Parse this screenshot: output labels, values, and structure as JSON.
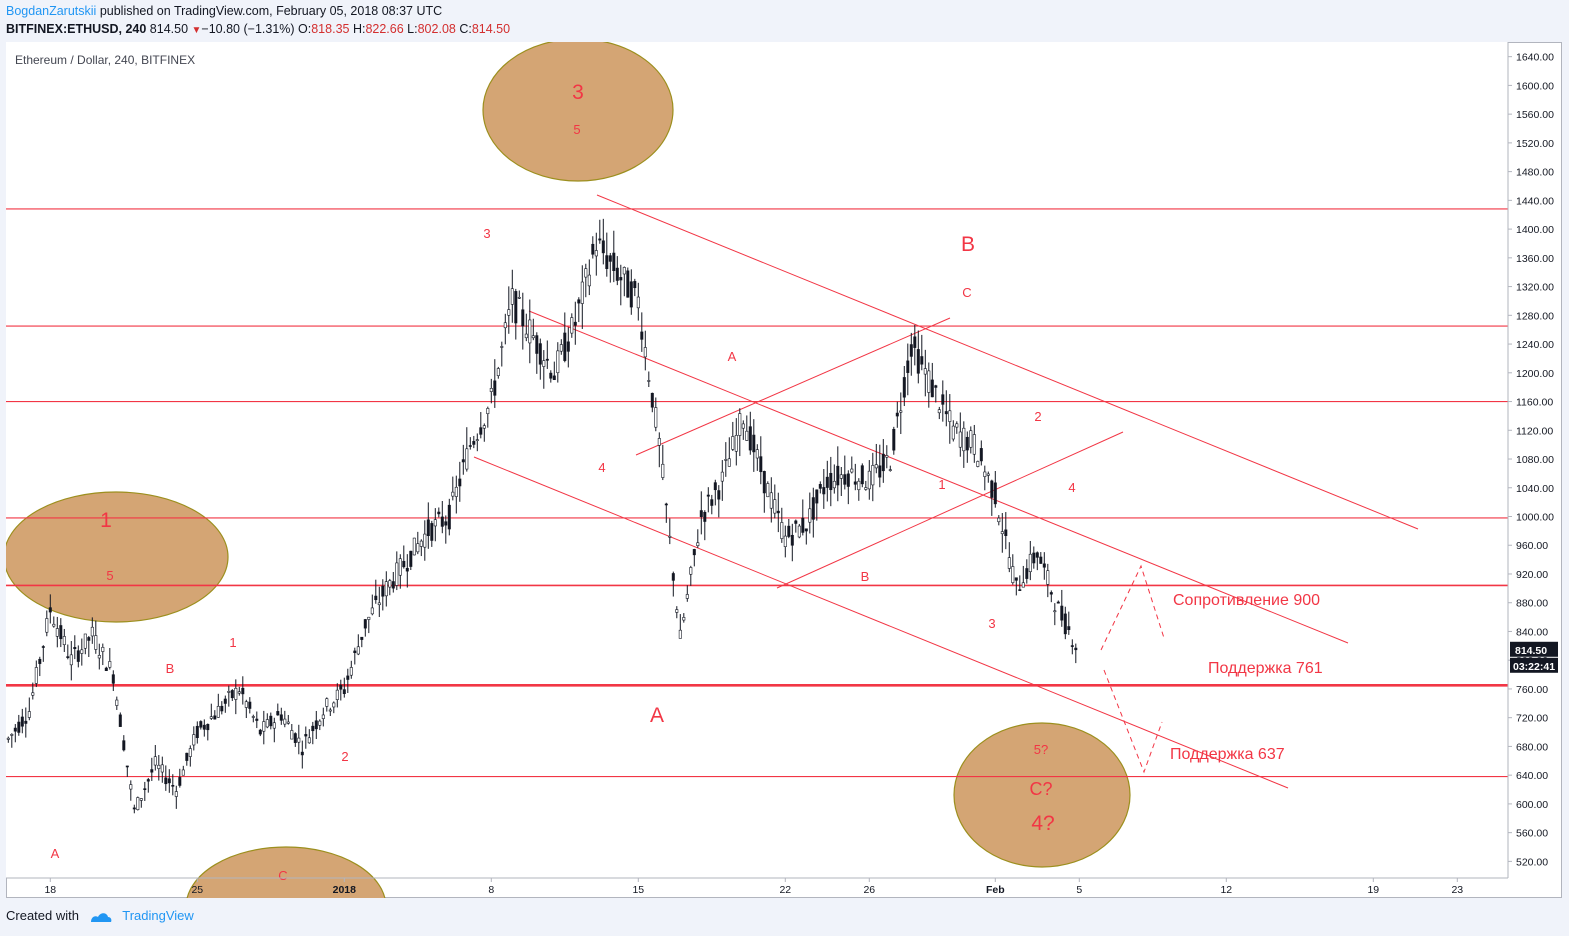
{
  "header": {
    "author": "BogdanZarutskii",
    "published": "published on TradingView.com, February 05, 2018 08:37 UTC",
    "symbol": "BITFINEX:ETHUSD, 240",
    "price": "814.50",
    "change": "−10.80 (−1.31%)",
    "o_label": "O:",
    "o_value": "818.35",
    "h_label": "H:",
    "h_value": "822.66",
    "l_label": "L:",
    "l_value": "802.08",
    "c_label": "C:",
    "c_value": "814.50",
    "down_glyph": "▼"
  },
  "footer": {
    "created_with": "Created with",
    "brand": "TradingView"
  },
  "colors": {
    "red": "#f23645",
    "ellipse_fill": "#d4a574",
    "ellipse_stroke": "#9c8f1e",
    "blue": "#2196f3"
  },
  "chart_data": {
    "type": "candlestick",
    "title": "Ethereum / Dollar, 240, BITFINEX",
    "ylim": [
      495,
      1660
    ],
    "y_ticks": [
      "1640.00",
      "1600.00",
      "1560.00",
      "1520.00",
      "1480.00",
      "1440.00",
      "1400.00",
      "1360.00",
      "1320.00",
      "1280.00",
      "1240.00",
      "1200.00",
      "1160.00",
      "1120.00",
      "1080.00",
      "1040.00",
      "1000.00",
      "960.00",
      "920.00",
      "880.00",
      "840.00",
      "800.00",
      "760.00",
      "720.00",
      "680.00",
      "640.00",
      "600.00",
      "560.00",
      "520.00"
    ],
    "x_ticks": [
      "18",
      "25",
      "2018",
      "8",
      "15",
      "22",
      "26",
      "Feb",
      "5",
      "12",
      "19",
      "23"
    ],
    "last_price_label": "814.50",
    "countdown_label": "03:22:41",
    "horizontal_levels": [
      1428,
      1265,
      1160,
      998,
      904,
      765,
      638
    ],
    "price_path": [
      [
        "16 Dec",
        690
      ],
      [
        "17 Dec",
        730
      ],
      [
        "18 Dec",
        870
      ],
      [
        "19 Dec",
        800
      ],
      [
        "20 Dec",
        835
      ],
      [
        "21 Dec",
        780
      ],
      [
        "22 Dec",
        590
      ],
      [
        "23 Dec",
        655
      ],
      [
        "24 Dec",
        620
      ],
      [
        "25 Dec",
        700
      ],
      [
        "26 Dec",
        730
      ],
      [
        "27 Dec",
        760
      ],
      [
        "28 Dec",
        700
      ],
      [
        "29 Dec",
        725
      ],
      [
        "30 Dec",
        680
      ],
      [
        "31 Dec",
        730
      ],
      [
        "1 Jan",
        760
      ],
      [
        "2 Jan",
        850
      ],
      [
        "3 Jan",
        900
      ],
      [
        "4 Jan",
        940
      ],
      [
        "5 Jan",
        980
      ],
      [
        "6 Jan",
        1000
      ],
      [
        "7 Jan",
        1100
      ],
      [
        "8 Jan",
        1160
      ],
      [
        "9 Jan",
        1300
      ],
      [
        "10 Jan",
        1250
      ],
      [
        "11 Jan",
        1200
      ],
      [
        "12 Jan",
        1270
      ],
      [
        "13 Jan",
        1380
      ],
      [
        "14 Jan",
        1340
      ],
      [
        "15 Jan",
        1300
      ],
      [
        "16 Jan",
        1100
      ],
      [
        "17 Jan",
        830
      ],
      [
        "18 Jan",
        1000
      ],
      [
        "19 Jan",
        1050
      ],
      [
        "20 Jan",
        1140
      ],
      [
        "21 Jan",
        1050
      ],
      [
        "22 Jan",
        970
      ],
      [
        "23 Jan",
        990
      ],
      [
        "24 Jan",
        1050
      ],
      [
        "25 Jan",
        1060
      ],
      [
        "26 Jan",
        1050
      ],
      [
        "27 Jan",
        1080
      ],
      [
        "28 Jan",
        1240
      ],
      [
        "29 Jan",
        1180
      ],
      [
        "30 Jan",
        1120
      ],
      [
        "31 Jan",
        1100
      ],
      [
        "1 Feb",
        1030
      ],
      [
        "2 Feb",
        900
      ],
      [
        "3 Feb",
        950
      ],
      [
        "4 Feb",
        870
      ],
      [
        "5 Feb",
        814.5
      ]
    ],
    "annotations": {
      "wave_labels": [
        {
          "text": "3",
          "size": "big"
        },
        {
          "text": "5",
          "size": "small"
        },
        {
          "text": "1",
          "size": "big"
        },
        {
          "text": "5",
          "size": "small"
        },
        {
          "text": "C?",
          "size": "mid"
        },
        {
          "text": "4?",
          "size": "big"
        },
        {
          "text": "5?",
          "size": "small"
        },
        {
          "text": "C",
          "size": "small"
        },
        {
          "text": "3",
          "size": "small"
        },
        {
          "text": "B",
          "size": "big"
        },
        {
          "text": "C",
          "size": "small"
        },
        {
          "text": "A",
          "size": "small"
        },
        {
          "text": "4",
          "size": "small"
        },
        {
          "text": "1",
          "size": "small"
        },
        {
          "text": "2",
          "size": "small"
        },
        {
          "text": "4",
          "size": "small"
        },
        {
          "text": "B",
          "size": "small"
        },
        {
          "text": "3",
          "size": "small"
        },
        {
          "text": "A",
          "size": "big"
        },
        {
          "text": "1",
          "size": "small"
        },
        {
          "text": "B",
          "size": "small"
        },
        {
          "text": "2",
          "size": "small"
        },
        {
          "text": "A",
          "size": "small"
        }
      ],
      "level_labels": [
        "Сопротивление 900",
        "Поддержка 761",
        "Поддержка 637"
      ]
    }
  }
}
